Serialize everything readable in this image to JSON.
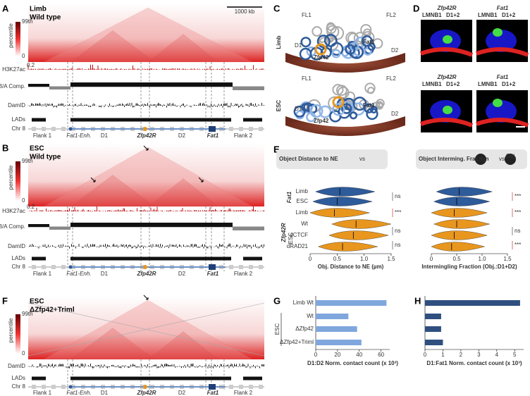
{
  "panels": {
    "A": {
      "label": "A",
      "title": "Limb",
      "subtitle": "Wild type",
      "scale_bar": "1000 kb",
      "colorbar_top": "99th",
      "colorbar_label": "percentile",
      "colorbar_bottom": "0",
      "track_max": "0.2",
      "tracks": [
        "H3K27ac",
        "B/A Comp.",
        "DamID",
        "LADs",
        "Chr 8"
      ],
      "regions": [
        "Flank 1",
        "Fat1-Enh.",
        "D1",
        "Zfp42R",
        "D2",
        "Fat1",
        "Flank 2"
      ]
    },
    "B": {
      "label": "B",
      "title": "ESC",
      "subtitle": "Wild type",
      "colorbar_top": "99th",
      "colorbar_label": "percentile",
      "colorbar_bottom": "0",
      "track_max": "0.2",
      "tracks": [
        "H3K27ac",
        "B/A Comp.",
        "DamID",
        "LADs",
        "Chr 8"
      ],
      "regions": [
        "Flank 1",
        "Fat1-Enh.",
        "D1",
        "Zfp42R",
        "D2",
        "Fat1",
        "Flank 2"
      ]
    },
    "F": {
      "label": "F",
      "title": "ESC",
      "subtitle": "ΔZfp42+Triml",
      "colorbar_top": "99th",
      "colorbar_label": "percentile",
      "colorbar_bottom": "0",
      "tracks": [
        "DamID",
        "LADs",
        "Chr 8"
      ],
      "regions": [
        "Flank 1",
        "Fat1-Enh.",
        "D1",
        "Zfp42R",
        "D2",
        "Fat1",
        "Flank 2"
      ]
    },
    "C": {
      "label": "C",
      "states": [
        "Limb",
        "ESC"
      ],
      "limb_labels": [
        "FL1",
        "FL2",
        "D1",
        "Zfp42",
        "Fat1",
        "D2"
      ],
      "esc_labels": [
        "FL1",
        "FL2",
        "D1",
        "Zfp42",
        "Fat1",
        "D2"
      ]
    },
    "D": {
      "label": "D",
      "probes": [
        "Zfp42R",
        "Fat1"
      ],
      "stain": "LMNB1",
      "domains": "D1+2"
    },
    "E": {
      "label": "E",
      "left_header": "Object Distance to NE",
      "vs": "vs",
      "right_header": "Object Interming. Fraction",
      "obj": "Obj",
      "groups": [
        "Fat1",
        "Zfp42R"
      ],
      "esc": "ESC",
      "left_stats": [
        "ns",
        "***",
        "ns",
        "ns"
      ],
      "right_stats": [
        "***",
        "***",
        "ns",
        "***"
      ]
    },
    "G": {
      "label": "G",
      "group": "ESC"
    },
    "H": {
      "label": "H",
      "group": "ESC"
    }
  },
  "chart_data": [
    {
      "type": "violin",
      "title": "Obj. Distance to NE (µm)",
      "categories": [
        "Limb",
        "ESC",
        "Limb",
        "Wt",
        "dCTCF",
        "dRAD21"
      ],
      "values": [
        0.55,
        0.5,
        0.45,
        0.85,
        0.8,
        0.6
      ],
      "colors": [
        "#2e5b9a",
        "#2e5b9a",
        "#e8961e",
        "#e8961e",
        "#e8961e",
        "#e8961e"
      ],
      "xlim": [
        0,
        1.5
      ],
      "xticks": [
        0,
        0.5,
        {
          "value": 1,
          "label": "1.0"
        },
        1.5
      ]
    },
    {
      "type": "violin",
      "title": "Intermingling Fraction (Obj.:D1+D2)",
      "categories": [
        "Limb",
        "ESC",
        "Limb",
        "Wt",
        "dCTCF",
        "dRAD21"
      ],
      "values": [
        0.55,
        0.5,
        0.45,
        0.5,
        0.45,
        0.4
      ],
      "colors": [
        "#2e5b9a",
        "#2e5b9a",
        "#e8961e",
        "#e8961e",
        "#e8961e",
        "#e8961e"
      ],
      "xlim": [
        0,
        1.5
      ],
      "xticks": [
        0,
        0.5,
        {
          "value": 1,
          "label": "1.0"
        },
        1.5
      ]
    },
    {
      "type": "hbar",
      "title": "D1:D2 Norm. contact count (x 10³)",
      "categories": [
        "Limb Wt",
        "Wt",
        "ΔZfp42",
        "ΔZfp42+Triml"
      ],
      "values": [
        65,
        30,
        38,
        42
      ],
      "color": "#7fa7dd",
      "xlim": [
        0,
        68
      ],
      "xticks": [
        0,
        20,
        40,
        60
      ]
    },
    {
      "type": "hbar",
      "title": "D1:Fat1 Norm. contact count (x 10³)",
      "categories": [
        "Limb Wt",
        "Wt",
        "ΔZfp42",
        "ΔZfp42+Triml"
      ],
      "values": [
        5.3,
        0.9,
        0.9,
        1.0
      ],
      "color": "#2f4f7f",
      "xlim": [
        0,
        5.5
      ],
      "xticks": [
        0,
        1,
        2,
        3,
        4,
        5
      ]
    }
  ]
}
